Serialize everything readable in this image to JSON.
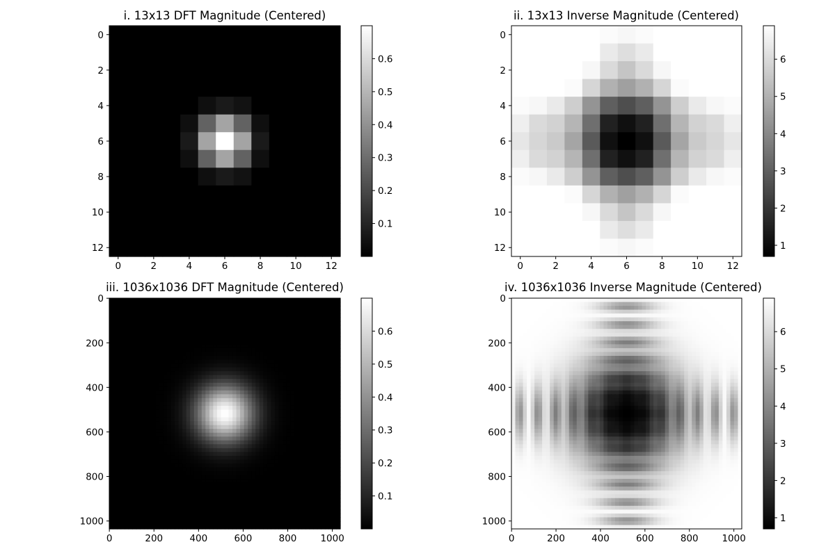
{
  "chart_data": [
    {
      "type": "heatmap",
      "title": "i. 13x13 DFT Magnitude (Centered)",
      "colormap": "gray",
      "grid_size": 13,
      "xlim": [
        -0.5,
        12.5
      ],
      "ylim": [
        12.5,
        -0.5
      ],
      "xticks": [
        0,
        2,
        4,
        6,
        8,
        10,
        12
      ],
      "yticks": [
        0,
        2,
        4,
        6,
        8,
        10,
        12
      ],
      "colorbar": {
        "min": 0.0,
        "max": 0.7,
        "ticks": [
          0.1,
          0.2,
          0.3,
          0.4,
          0.5,
          0.6
        ]
      },
      "values": [
        [
          0,
          0,
          0,
          0,
          0,
          0,
          0,
          0,
          0,
          0,
          0,
          0,
          0
        ],
        [
          0,
          0,
          0,
          0,
          0,
          0,
          0,
          0,
          0,
          0,
          0,
          0,
          0
        ],
        [
          0,
          0,
          0,
          0,
          0,
          0,
          0,
          0,
          0,
          0,
          0,
          0,
          0
        ],
        [
          0,
          0,
          0,
          0,
          0,
          0,
          0,
          0,
          0,
          0,
          0,
          0,
          0
        ],
        [
          0,
          0,
          0,
          0,
          0,
          0.04,
          0.07,
          0.05,
          0,
          0,
          0,
          0,
          0
        ],
        [
          0,
          0,
          0,
          0,
          0.04,
          0.27,
          0.45,
          0.27,
          0.04,
          0,
          0,
          0,
          0
        ],
        [
          0,
          0,
          0,
          0,
          0.07,
          0.45,
          0.7,
          0.45,
          0.07,
          0,
          0,
          0,
          0
        ],
        [
          0,
          0,
          0,
          0,
          0.04,
          0.27,
          0.45,
          0.27,
          0.04,
          0,
          0,
          0,
          0
        ],
        [
          0,
          0,
          0,
          0,
          0,
          0.04,
          0.07,
          0.05,
          0,
          0,
          0,
          0,
          0
        ],
        [
          0,
          0,
          0,
          0,
          0,
          0,
          0,
          0,
          0,
          0,
          0,
          0,
          0
        ],
        [
          0,
          0,
          0,
          0,
          0,
          0,
          0,
          0,
          0,
          0,
          0,
          0,
          0
        ],
        [
          0,
          0,
          0,
          0,
          0,
          0,
          0,
          0,
          0,
          0,
          0,
          0,
          0
        ],
        [
          0,
          0,
          0,
          0,
          0,
          0,
          0,
          0,
          0,
          0,
          0,
          0,
          0
        ]
      ]
    },
    {
      "type": "heatmap",
      "title": "ii. 13x13 Inverse Magnitude (Centered)",
      "colormap": "gray",
      "grid_size": 13,
      "xlim": [
        -0.5,
        12.5
      ],
      "ylim": [
        12.5,
        -0.5
      ],
      "xticks": [
        0,
        2,
        4,
        6,
        8,
        10,
        12
      ],
      "yticks": [
        0,
        2,
        4,
        6,
        8,
        10,
        12
      ],
      "colorbar": {
        "min": 0.7,
        "max": 6.9,
        "ticks": [
          1,
          2,
          3,
          4,
          5,
          6
        ]
      },
      "values": [
        [
          6.9,
          6.9,
          6.9,
          6.9,
          6.9,
          6.8,
          6.7,
          6.8,
          6.9,
          6.9,
          6.9,
          6.9,
          6.9
        ],
        [
          6.9,
          6.9,
          6.9,
          6.9,
          6.9,
          6.4,
          6.1,
          6.4,
          6.9,
          6.9,
          6.9,
          6.9,
          6.9
        ],
        [
          6.9,
          6.9,
          6.9,
          6.9,
          6.7,
          6.0,
          5.5,
          6.0,
          6.7,
          6.9,
          6.9,
          6.9,
          6.9
        ],
        [
          6.9,
          6.9,
          6.9,
          6.8,
          5.9,
          5.0,
          4.6,
          5.0,
          5.9,
          6.8,
          6.9,
          6.9,
          6.9
        ],
        [
          6.8,
          6.7,
          6.4,
          5.7,
          4.3,
          3.0,
          2.6,
          3.0,
          4.3,
          5.7,
          6.4,
          6.7,
          6.8
        ],
        [
          6.5,
          6.0,
          5.8,
          5.1,
          3.4,
          1.5,
          1.1,
          1.5,
          3.4,
          5.1,
          5.8,
          6.0,
          6.5
        ],
        [
          6.3,
          5.9,
          5.6,
          4.7,
          2.9,
          1.1,
          0.7,
          1.1,
          2.9,
          4.7,
          5.6,
          5.9,
          6.3
        ],
        [
          6.5,
          6.0,
          5.8,
          5.1,
          3.4,
          1.5,
          1.1,
          1.5,
          3.4,
          5.1,
          5.8,
          6.0,
          6.5
        ],
        [
          6.8,
          6.7,
          6.4,
          5.7,
          4.3,
          3.0,
          2.6,
          3.0,
          4.3,
          5.7,
          6.4,
          6.7,
          6.8
        ],
        [
          6.9,
          6.9,
          6.9,
          6.8,
          5.9,
          5.0,
          4.6,
          5.0,
          5.9,
          6.8,
          6.9,
          6.9,
          6.9
        ],
        [
          6.9,
          6.9,
          6.9,
          6.9,
          6.7,
          6.0,
          5.5,
          6.0,
          6.7,
          6.9,
          6.9,
          6.9,
          6.9
        ],
        [
          6.9,
          6.9,
          6.9,
          6.9,
          6.9,
          6.4,
          6.1,
          6.4,
          6.9,
          6.9,
          6.9,
          6.9,
          6.9
        ],
        [
          6.9,
          6.9,
          6.9,
          6.9,
          6.9,
          6.8,
          6.7,
          6.8,
          6.9,
          6.9,
          6.9,
          6.9,
          6.9
        ]
      ]
    },
    {
      "type": "heatmap",
      "title": "iii. 1036x1036 DFT Magnitude (Centered)",
      "colormap": "gray",
      "grid_size": 1036,
      "xlim": [
        -0.5,
        1035.5
      ],
      "ylim": [
        1035.5,
        -0.5
      ],
      "xticks": [
        0,
        200,
        400,
        600,
        800,
        1000
      ],
      "yticks": [
        0,
        200,
        400,
        600,
        800,
        1000
      ],
      "colorbar": {
        "min": 0.0,
        "max": 0.7,
        "ticks": [
          0.1,
          0.2,
          0.3,
          0.4,
          0.5,
          0.6
        ]
      },
      "peak_center": [
        518,
        518
      ],
      "peak_value": 0.7,
      "peak_radius": 90
    },
    {
      "type": "heatmap",
      "title": "iv. 1036x1036 Inverse Magnitude (Centered)",
      "colormap": "gray",
      "grid_size": 1036,
      "xlim": [
        -0.5,
        1035.5
      ],
      "ylim": [
        1035.5,
        -0.5
      ],
      "xticks": [
        0,
        200,
        400,
        600,
        800,
        1000
      ],
      "yticks": [
        0,
        200,
        400,
        600,
        800,
        1000
      ],
      "colorbar": {
        "min": 0.7,
        "max": 6.9,
        "ticks": [
          1,
          2,
          3,
          4,
          5,
          6
        ]
      },
      "dark_center": [
        518,
        518
      ],
      "dark_radius": 220,
      "band_period": 80
    }
  ]
}
